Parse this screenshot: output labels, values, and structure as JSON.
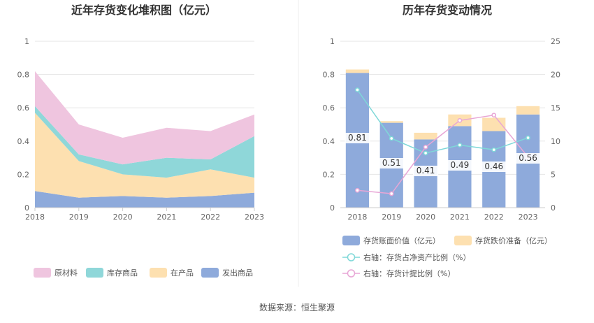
{
  "source_note": "数据来源：恒生聚源",
  "chart_data": [
    {
      "type": "area",
      "stacked": true,
      "title": "近年存货变化堆积图（亿元）",
      "x": [
        "2018",
        "2019",
        "2020",
        "2021",
        "2022",
        "2023"
      ],
      "ylim": [
        0,
        1
      ],
      "yticks": [
        "0",
        "0.2",
        "0.4",
        "0.6",
        "0.8",
        "1"
      ],
      "grid": true,
      "legend_position": "bottom",
      "series": [
        {
          "name": "发出商品",
          "color": "#8eaadb",
          "values": [
            0.1,
            0.06,
            0.07,
            0.06,
            0.07,
            0.09
          ]
        },
        {
          "name": "在产品",
          "color": "#fde0b0",
          "values": [
            0.47,
            0.22,
            0.13,
            0.12,
            0.16,
            0.09
          ]
        },
        {
          "name": "库存商品",
          "color": "#8fd7d9",
          "values": [
            0.04,
            0.04,
            0.06,
            0.12,
            0.06,
            0.25
          ]
        },
        {
          "name": "原材料",
          "color": "#efc5df",
          "values": [
            0.21,
            0.18,
            0.16,
            0.18,
            0.17,
            0.13
          ]
        }
      ],
      "legend_order": [
        "原材料",
        "库存商品",
        "在产品",
        "发出商品"
      ]
    },
    {
      "type": "bar",
      "stacked": true,
      "title": "历年存货变动情况",
      "categories": [
        "2018",
        "2019",
        "2020",
        "2021",
        "2022",
        "2023"
      ],
      "ylim": [
        0,
        1
      ],
      "yticks": [
        "0",
        "0.2",
        "0.4",
        "0.6",
        "0.8",
        "1"
      ],
      "y2lim": [
        0,
        25
      ],
      "y2ticks": [
        "0",
        "5",
        "10",
        "15",
        "20",
        "25"
      ],
      "grid": true,
      "legend_position": "bottom",
      "bars": [
        {
          "name": "存货账面价值（亿元）",
          "color": "#8eaadb",
          "values": [
            0.81,
            0.51,
            0.41,
            0.49,
            0.46,
            0.56
          ],
          "labels": [
            "0.81",
            "0.51",
            "0.41",
            "0.49",
            "0.46",
            "0.56"
          ]
        },
        {
          "name": "存货跌价准备（亿元）",
          "color": "#fde0b0",
          "values": [
            0.02,
            0.01,
            0.04,
            0.07,
            0.08,
            0.05
          ]
        }
      ],
      "lines": [
        {
          "name": "右轴：存货占净资产比例（%）",
          "color": "#7fd8d8",
          "axis": "right",
          "values": [
            17.7,
            10.4,
            8.2,
            9.4,
            8.7,
            10.5
          ]
        },
        {
          "name": "右轴：存货计提比例（%）",
          "color": "#e8a6d6",
          "axis": "right",
          "values": [
            2.6,
            2.1,
            9.1,
            13.1,
            13.9,
            7.6
          ]
        }
      ]
    }
  ]
}
